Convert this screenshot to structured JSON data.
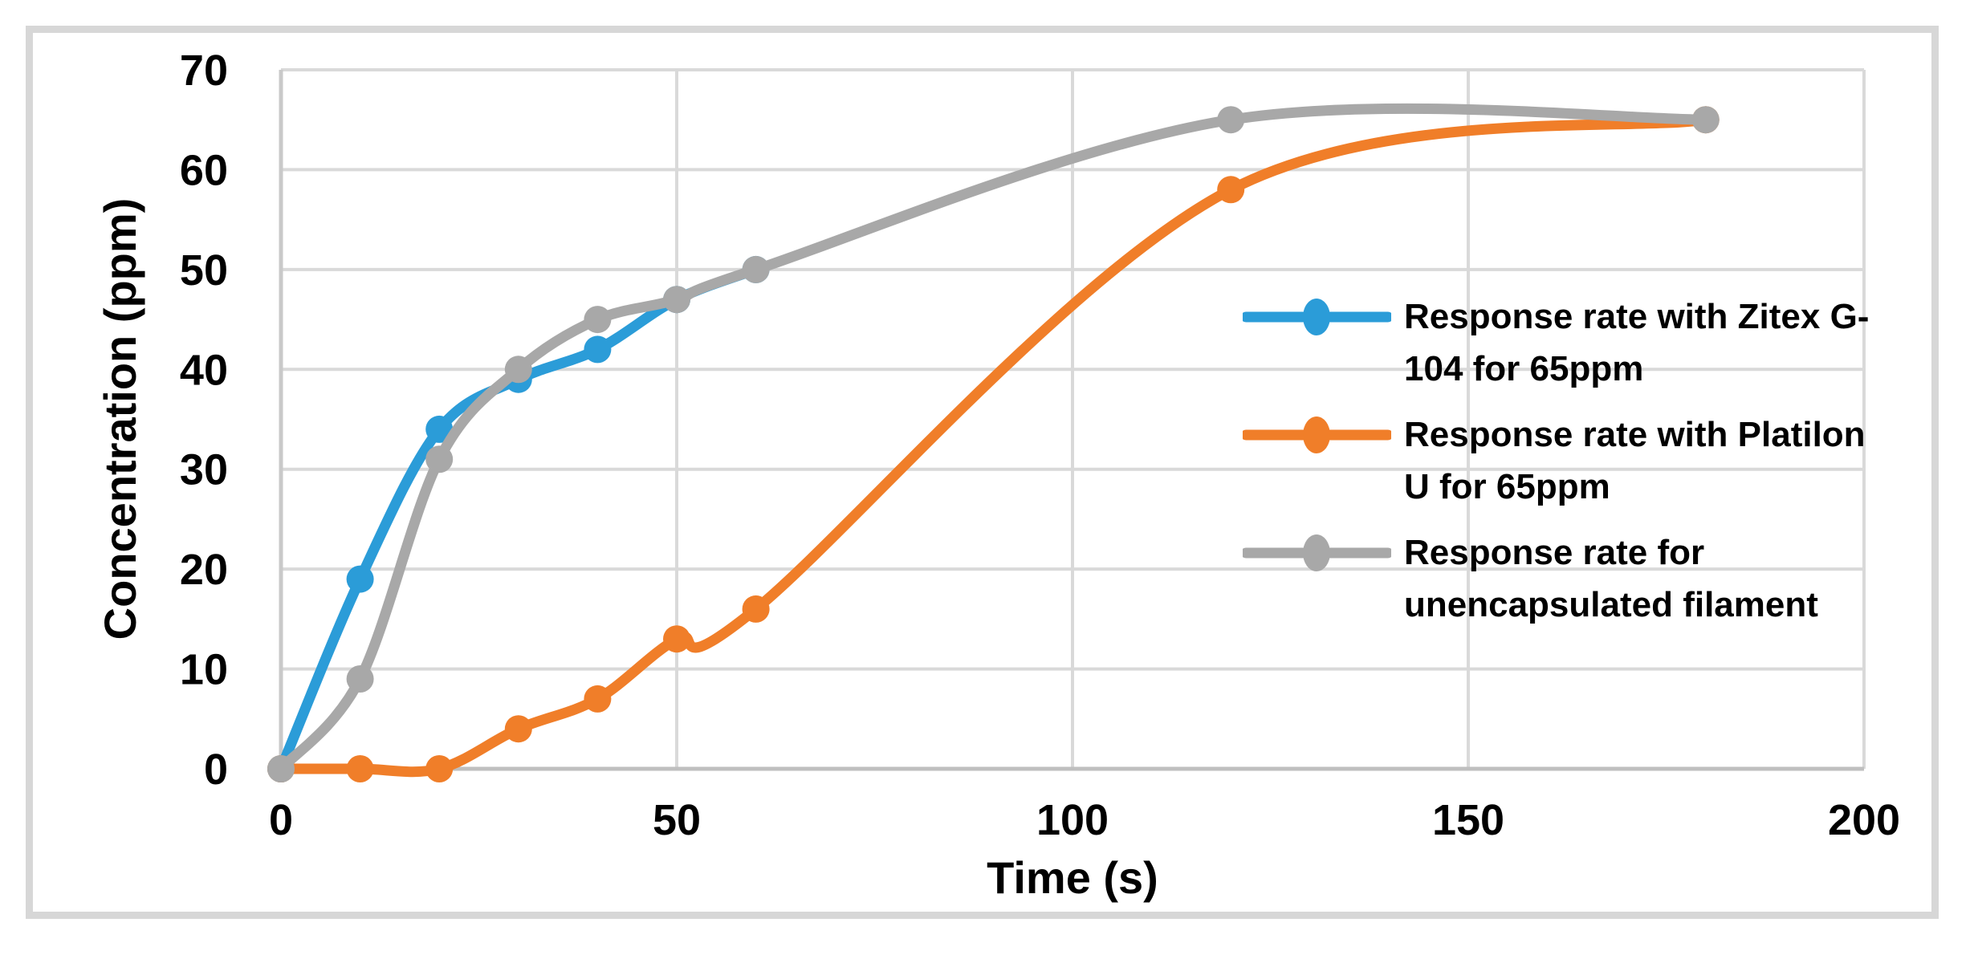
{
  "chart_data": {
    "type": "line",
    "title": "",
    "xlabel": "Time (s)",
    "ylabel": "Concentration (ppm)",
    "xlim": [
      0,
      200
    ],
    "ylim": [
      0,
      70
    ],
    "x_ticks": [
      0,
      50,
      100,
      150,
      200
    ],
    "y_ticks": [
      0,
      10,
      20,
      30,
      40,
      50,
      60,
      70
    ],
    "grid": true,
    "line_style": "smooth",
    "marker": "circle",
    "legend_position": "middle-right",
    "series": [
      {
        "name": "Response rate with Zitex G-104 for 65ppm",
        "color": "#2b9cd8",
        "x": [
          0,
          10,
          20,
          30,
          40,
          50,
          60
        ],
        "y": [
          0,
          19,
          34,
          39,
          42,
          47,
          50
        ]
      },
      {
        "name": "Response rate with Platilon U for 65ppm",
        "color": "#f07e29",
        "x": [
          0,
          10,
          20,
          30,
          40,
          50,
          60,
          120,
          180
        ],
        "y": [
          0,
          0,
          0,
          4,
          7,
          13,
          16,
          58,
          65
        ]
      },
      {
        "name": "Response rate for unencapsulated filament",
        "color": "#a8a8a8",
        "x": [
          0,
          10,
          20,
          30,
          40,
          50,
          60,
          120,
          180
        ],
        "y": [
          0,
          9,
          31,
          40,
          45,
          47,
          50,
          65,
          65
        ]
      }
    ],
    "colors": {
      "gridline": "#d9d9d9",
      "y_axis_line": "#c9c9c9",
      "x_axis_line": "#bfbfbf",
      "frame_border": "#d7d7d7",
      "text": "#000000",
      "background": "#ffffff"
    }
  }
}
